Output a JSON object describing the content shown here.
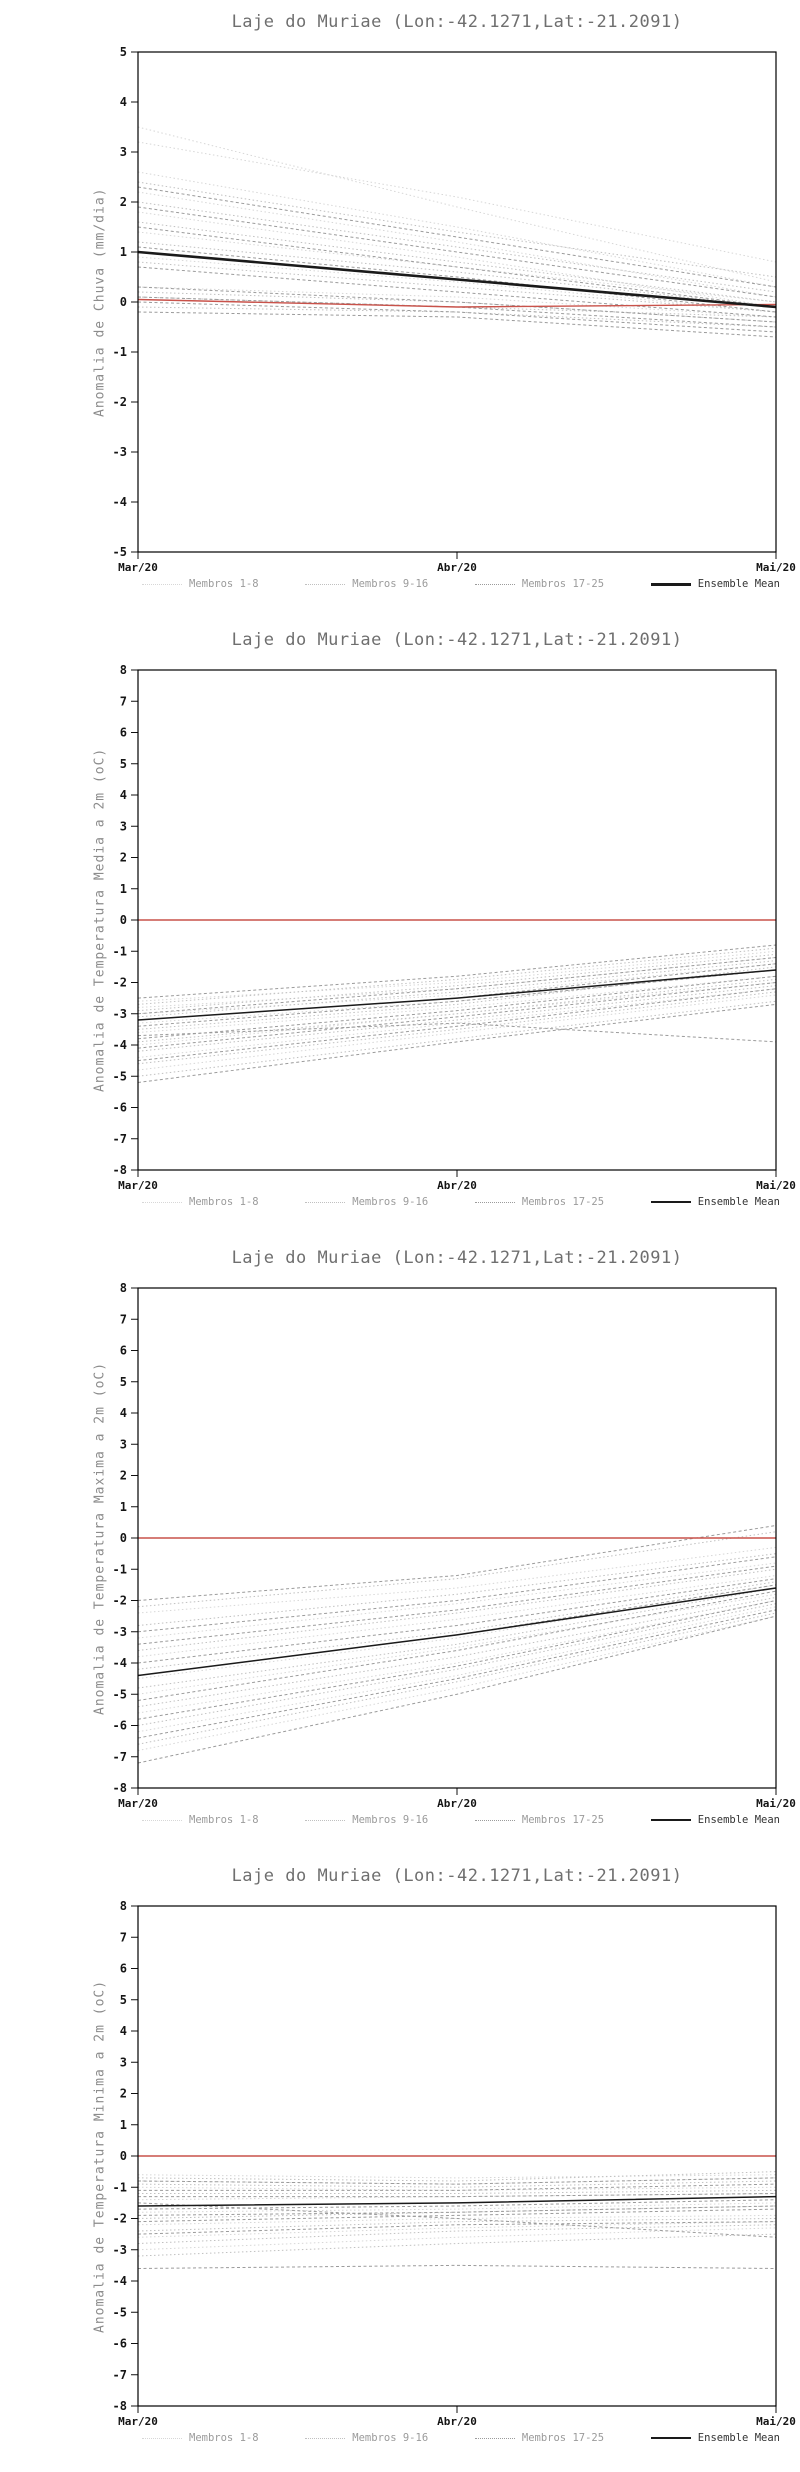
{
  "chart_data": [
    {
      "type": "line",
      "title": "Laje do Muriae (Lon:-42.1271,Lat:-21.2091)",
      "ylabel": "Anomalia de Chuva (mm/dia)",
      "x": [
        "Mar/20",
        "Abr/20",
        "Mai/20"
      ],
      "ylim": [
        -5,
        5
      ],
      "ytick_step": 1,
      "legend_position": "bottom",
      "grid": false,
      "zero_line_color": "#c9524a",
      "series": [
        {
          "name": "Membros 1-8",
          "role": "members",
          "color": "#d7d7d7",
          "dash": "1.5,2.5",
          "width": 1,
          "lines": [
            [
              3.5,
              1.9,
              0.4
            ],
            [
              3.2,
              2.1,
              0.8
            ],
            [
              2.6,
              1.5,
              0.3
            ],
            [
              2.2,
              1.2,
              0.1
            ],
            [
              1.8,
              0.9,
              -0.1
            ],
            [
              1.4,
              0.7,
              0.0
            ],
            [
              0.9,
              0.4,
              -0.2
            ],
            [
              0.3,
              0.1,
              -0.3
            ]
          ]
        },
        {
          "name": "Membros 9-16",
          "role": "members",
          "color": "#c0c0c0",
          "dash": "1.5,2.5",
          "width": 1,
          "lines": [
            [
              2.4,
              1.4,
              0.5
            ],
            [
              2.0,
              1.1,
              0.2
            ],
            [
              1.6,
              0.8,
              0.0
            ],
            [
              1.2,
              0.6,
              -0.1
            ],
            [
              0.8,
              0.3,
              -0.2
            ],
            [
              0.2,
              0.0,
              -0.4
            ],
            [
              0.1,
              -0.1,
              -0.3
            ],
            [
              -0.1,
              -0.2,
              -0.5
            ]
          ]
        },
        {
          "name": "Membros 17-25",
          "role": "members",
          "color": "#9b9b9b",
          "dash": "3,2.5",
          "width": 1,
          "lines": [
            [
              2.3,
              1.3,
              0.3
            ],
            [
              1.9,
              1.0,
              0.1
            ],
            [
              1.5,
              0.7,
              -0.1
            ],
            [
              1.1,
              0.5,
              -0.2
            ],
            [
              0.7,
              0.2,
              -0.3
            ],
            [
              0.3,
              0.0,
              -0.4
            ],
            [
              0.1,
              -0.1,
              -0.5
            ],
            [
              0.0,
              -0.2,
              -0.6
            ],
            [
              -0.2,
              -0.3,
              -0.7
            ]
          ]
        },
        {
          "name": "Ensemble Mean",
          "role": "mean",
          "color": "#1a1a1a",
          "dash": null,
          "width": 2.6,
          "lines": [
            [
              1.0,
              0.45,
              -0.1
            ]
          ]
        },
        {
          "name": "Zero",
          "role": "zero",
          "color": "#c9524a",
          "dash": null,
          "width": 1.4,
          "lines": [
            [
              0.05,
              -0.1,
              -0.05
            ]
          ]
        }
      ]
    },
    {
      "type": "line",
      "title": "Laje do Muriae (Lon:-42.1271,Lat:-21.2091)",
      "ylabel": "Anomalia de Temperatura Media a 2m (oC)",
      "x": [
        "Mar/20",
        "Abr/20",
        "Mai/20"
      ],
      "ylim": [
        -8,
        8
      ],
      "ytick_step": 1,
      "legend_position": "bottom",
      "grid": false,
      "zero_line_color": "#c9524a",
      "series": [
        {
          "name": "Membros 1-8",
          "role": "members",
          "color": "#d7d7d7",
          "dash": "1.5,2.5",
          "width": 1,
          "lines": [
            [
              -3.0,
              -2.4,
              -1.4
            ],
            [
              -3.3,
              -2.6,
              -1.6
            ],
            [
              -3.6,
              -2.8,
              -1.8
            ],
            [
              -2.8,
              -2.2,
              -1.2
            ],
            [
              -4.0,
              -3.0,
              -2.0
            ],
            [
              -4.4,
              -3.3,
              -2.2
            ],
            [
              -2.6,
              -2.0,
              -1.0
            ],
            [
              -4.8,
              -3.6,
              -2.4
            ]
          ]
        },
        {
          "name": "Membros 9-16",
          "role": "members",
          "color": "#c0c0c0",
          "dash": "1.5,2.5",
          "width": 1,
          "lines": [
            [
              -3.1,
              -2.3,
              -1.3
            ],
            [
              -3.5,
              -2.7,
              -1.5
            ],
            [
              -3.9,
              -3.0,
              -1.9
            ],
            [
              -2.9,
              -2.1,
              -1.1
            ],
            [
              -4.2,
              -3.2,
              -2.1
            ],
            [
              -4.6,
              -3.5,
              -2.3
            ],
            [
              -2.7,
              -1.9,
              -0.9
            ],
            [
              -5.0,
              -3.8,
              -2.6
            ]
          ]
        },
        {
          "name": "Membros 17-25",
          "role": "members",
          "color": "#9b9b9b",
          "dash": "3,2.5",
          "width": 1,
          "lines": [
            [
              -3.2,
              -2.5,
              -1.4
            ],
            [
              -3.4,
              -2.6,
              -1.6
            ],
            [
              -3.8,
              -2.9,
              -1.8
            ],
            [
              -3.0,
              -2.2,
              -1.2
            ],
            [
              -4.1,
              -3.1,
              -2.0
            ],
            [
              -4.5,
              -3.4,
              -2.2
            ],
            [
              -2.5,
              -1.8,
              -0.8
            ],
            [
              -5.2,
              -3.9,
              -2.7
            ],
            [
              -3.7,
              -3.3,
              -3.9
            ]
          ]
        },
        {
          "name": "Ensemble Mean",
          "role": "mean",
          "color": "#1a1a1a",
          "dash": null,
          "width": 1.5,
          "lines": [
            [
              -3.2,
              -2.5,
              -1.6
            ]
          ]
        },
        {
          "name": "Zero",
          "role": "zero",
          "color": "#c9524a",
          "dash": null,
          "width": 1.4,
          "lines": [
            [
              0,
              0,
              0
            ]
          ]
        }
      ]
    },
    {
      "type": "line",
      "title": "Laje do Muriae (Lon:-42.1271,Lat:-21.2091)",
      "ylabel": "Anomalia de Temperatura Maxima a 2m (oC)",
      "x": [
        "Mar/20",
        "Abr/20",
        "Mai/20"
      ],
      "ylim": [
        -8,
        8
      ],
      "ytick_step": 1,
      "legend_position": "bottom",
      "grid": false,
      "zero_line_color": "#c9524a",
      "series": [
        {
          "name": "Membros 1-8",
          "role": "members",
          "color": "#d7d7d7",
          "dash": "1.5,2.5",
          "width": 1,
          "lines": [
            [
              -4.5,
              -3.2,
              -1.5
            ],
            [
              -5.0,
              -3.5,
              -1.8
            ],
            [
              -5.6,
              -4.0,
              -2.0
            ],
            [
              -3.8,
              -2.6,
              -1.2
            ],
            [
              -6.2,
              -4.4,
              -2.2
            ],
            [
              -6.8,
              -4.8,
              -2.5
            ],
            [
              -3.2,
              -2.1,
              -0.8
            ],
            [
              -2.4,
              -1.6,
              -0.3
            ]
          ]
        },
        {
          "name": "Membros 9-16",
          "role": "members",
          "color": "#c0c0c0",
          "dash": "1.5,2.5",
          "width": 1,
          "lines": [
            [
              -4.2,
              -3.0,
              -1.4
            ],
            [
              -4.8,
              -3.4,
              -1.6
            ],
            [
              -5.4,
              -3.8,
              -1.9
            ],
            [
              -3.6,
              -2.4,
              -1.0
            ],
            [
              -6.0,
              -4.2,
              -2.1
            ],
            [
              -6.6,
              -4.6,
              -2.4
            ],
            [
              -2.8,
              -1.8,
              -0.5
            ],
            [
              -2.2,
              -1.3,
              0.2
            ]
          ]
        },
        {
          "name": "Membros 17-25",
          "role": "members",
          "color": "#9b9b9b",
          "dash": "3,2.5",
          "width": 1,
          "lines": [
            [
              -4.4,
              -3.1,
              -1.5
            ],
            [
              -5.2,
              -3.6,
              -1.7
            ],
            [
              -5.8,
              -4.1,
              -2.0
            ],
            [
              -4.0,
              -2.8,
              -1.3
            ],
            [
              -6.4,
              -4.5,
              -2.3
            ],
            [
              -7.2,
              -5.0,
              -2.5
            ],
            [
              -3.0,
              -2.0,
              -0.6
            ],
            [
              -2.0,
              -1.2,
              0.4
            ],
            [
              -3.4,
              -2.3,
              -0.9
            ]
          ]
        },
        {
          "name": "Ensemble Mean",
          "role": "mean",
          "color": "#1a1a1a",
          "dash": null,
          "width": 1.5,
          "lines": [
            [
              -4.4,
              -3.1,
              -1.6
            ]
          ]
        },
        {
          "name": "Zero",
          "role": "zero",
          "color": "#c9524a",
          "dash": null,
          "width": 1.4,
          "lines": [
            [
              0,
              0,
              0
            ]
          ]
        }
      ]
    },
    {
      "type": "line",
      "title": "Laje do Muriae (Lon:-42.1271,Lat:-21.2091)",
      "ylabel": "Anomalia de Temperatura Minima a 2m (oC)",
      "x": [
        "Mar/20",
        "Abr/20",
        "Mai/20"
      ],
      "ylim": [
        -8,
        8
      ],
      "ytick_step": 1,
      "legend_position": "bottom",
      "grid": false,
      "zero_line_color": "#c9524a",
      "series": [
        {
          "name": "Membros 1-8",
          "role": "members",
          "color": "#d7d7d7",
          "dash": "1.5,2.5",
          "width": 1,
          "lines": [
            [
              -1.0,
              -1.1,
              -1.0
            ],
            [
              -1.4,
              -1.3,
              -1.2
            ],
            [
              -1.8,
              -1.7,
              -1.5
            ],
            [
              -0.8,
              -0.9,
              -0.7
            ],
            [
              -2.2,
              -2.0,
              -1.9
            ],
            [
              -2.6,
              -2.3,
              -2.1
            ],
            [
              -0.6,
              -0.7,
              -0.6
            ],
            [
              -3.0,
              -2.6,
              -2.3
            ]
          ]
        },
        {
          "name": "Membros 9-16",
          "role": "members",
          "color": "#c0c0c0",
          "dash": "1.5,2.5",
          "width": 1,
          "lines": [
            [
              -1.2,
              -1.2,
              -1.1
            ],
            [
              -1.6,
              -1.5,
              -1.3
            ],
            [
              -2.0,
              -1.8,
              -1.6
            ],
            [
              -0.9,
              -1.0,
              -0.8
            ],
            [
              -2.4,
              -2.1,
              -2.0
            ],
            [
              -2.8,
              -2.4,
              -2.2
            ],
            [
              -0.7,
              -0.8,
              -0.5
            ],
            [
              -3.2,
              -2.8,
              -2.5
            ]
          ]
        },
        {
          "name": "Membros 17-25",
          "role": "members",
          "color": "#9b9b9b",
          "dash": "3,2.5",
          "width": 1,
          "lines": [
            [
              -1.3,
              -1.3,
              -1.2
            ],
            [
              -1.7,
              -1.6,
              -1.4
            ],
            [
              -2.1,
              -1.9,
              -1.7
            ],
            [
              -1.1,
              -1.1,
              -0.9
            ],
            [
              -2.5,
              -2.2,
              -2.1
            ],
            [
              -3.6,
              -3.5,
              -3.6
            ],
            [
              -0.8,
              -0.9,
              -0.7
            ],
            [
              -1.5,
              -2.0,
              -2.6
            ],
            [
              -1.9,
              -1.8,
              -1.6
            ]
          ]
        },
        {
          "name": "Ensemble Mean",
          "role": "mean",
          "color": "#1a1a1a",
          "dash": null,
          "width": 1.5,
          "lines": [
            [
              -1.6,
              -1.5,
              -1.3
            ]
          ]
        },
        {
          "name": "Zero",
          "role": "zero",
          "color": "#c9524a",
          "dash": null,
          "width": 1.4,
          "lines": [
            [
              0,
              0,
              0
            ]
          ]
        }
      ]
    }
  ]
}
